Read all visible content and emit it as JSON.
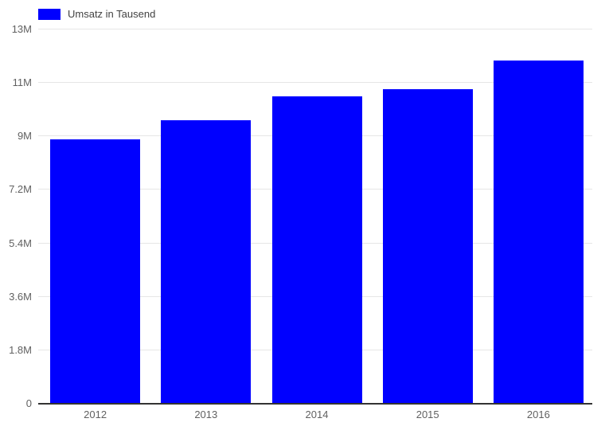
{
  "chart_data": {
    "type": "bar",
    "title": "",
    "legend": {
      "position": "top",
      "label": "Umsatz in Tausend"
    },
    "categories": [
      "2012",
      "2013",
      "2014",
      "2015",
      "2016"
    ],
    "series": [
      {
        "name": "Umsatz in Tausend",
        "color": "#0000ff",
        "values_millions": [
          8.9,
          9.55,
          10.35,
          10.6,
          11.55
        ]
      }
    ],
    "y_axis": {
      "min_millions": 0,
      "max_millions": 12.6,
      "tick_step_millions": 1.8,
      "ticks": [
        {
          "value_millions": 0,
          "label": "0"
        },
        {
          "value_millions": 1.8,
          "label": "1.8M"
        },
        {
          "value_millions": 3.6,
          "label": "3.6M"
        },
        {
          "value_millions": 5.4,
          "label": "5.4M"
        },
        {
          "value_millions": 7.2,
          "label": "7.2M"
        },
        {
          "value_millions": 9,
          "label": "9M"
        },
        {
          "value_millions": 10.8,
          "label": "11M"
        },
        {
          "value_millions": 12.6,
          "label": "13M"
        }
      ]
    },
    "x_axis": {
      "label": ""
    },
    "grid": true,
    "colors": {
      "bar": "#0000ff",
      "gridline": "#e6e6e6",
      "axis_line": "#333333",
      "axis_label": "#616161",
      "legend_label": "#424242",
      "background": "#ffffff"
    }
  }
}
